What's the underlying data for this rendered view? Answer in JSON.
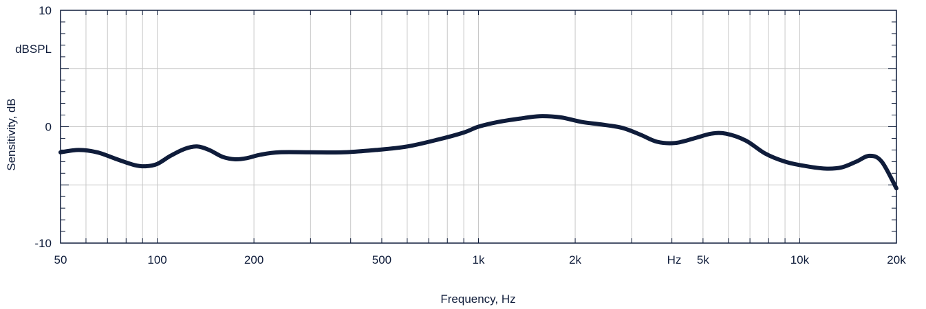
{
  "chart_data": {
    "type": "line",
    "title": "",
    "xlabel": "Frequency, Hz",
    "ylabel": "Sensitivity, dB",
    "ylabel_unit": "dBSPL",
    "x_unit_marker": "Hz",
    "x_scale": "log",
    "xlim": [
      50,
      20000
    ],
    "ylim": [
      -10,
      10
    ],
    "grid": true,
    "legend": "none",
    "colors": {
      "line": "#0f1c3a",
      "grid": "#c8c8c8",
      "frame": "#0f1c3a"
    },
    "x_ticks": [
      {
        "value": 50,
        "label": "50"
      },
      {
        "value": 100,
        "label": "100"
      },
      {
        "value": 200,
        "label": "200"
      },
      {
        "value": 500,
        "label": "500"
      },
      {
        "value": 1000,
        "label": "1k"
      },
      {
        "value": 2000,
        "label": "2k"
      },
      {
        "value": 5000,
        "label": "5k"
      },
      {
        "value": 10000,
        "label": "10k"
      },
      {
        "value": 20000,
        "label": "20k"
      }
    ],
    "y_ticks": [
      {
        "value": 10,
        "label": "10"
      },
      {
        "value": 0,
        "label": "0"
      },
      {
        "value": -10,
        "label": "-10"
      }
    ],
    "series": [
      {
        "x": [
          50,
          57,
          65,
          75,
          85,
          92,
          100,
          110,
          122,
          133,
          145,
          160,
          175,
          190,
          210,
          240,
          300,
          380,
          480,
          600,
          750,
          900,
          1000,
          1150,
          1350,
          1550,
          1800,
          2100,
          2400,
          2800,
          3200,
          3600,
          4100,
          4700,
          5300,
          5900,
          6800,
          7800,
          9000,
          10500,
          12000,
          13500,
          15000,
          16500,
          18000,
          20000
        ],
        "y": [
          -2.2,
          -2.0,
          -2.2,
          -2.8,
          -3.3,
          -3.4,
          -3.2,
          -2.5,
          -1.9,
          -1.7,
          -2.0,
          -2.6,
          -2.8,
          -2.7,
          -2.4,
          -2.2,
          -2.2,
          -2.2,
          -2.0,
          -1.7,
          -1.1,
          -0.5,
          0.0,
          0.4,
          0.7,
          0.9,
          0.8,
          0.4,
          0.2,
          -0.1,
          -0.7,
          -1.3,
          -1.4,
          -1.0,
          -0.6,
          -0.6,
          -1.2,
          -2.3,
          -3.0,
          -3.4,
          -3.6,
          -3.5,
          -3.0,
          -2.5,
          -3.0,
          -5.3
        ]
      }
    ]
  }
}
